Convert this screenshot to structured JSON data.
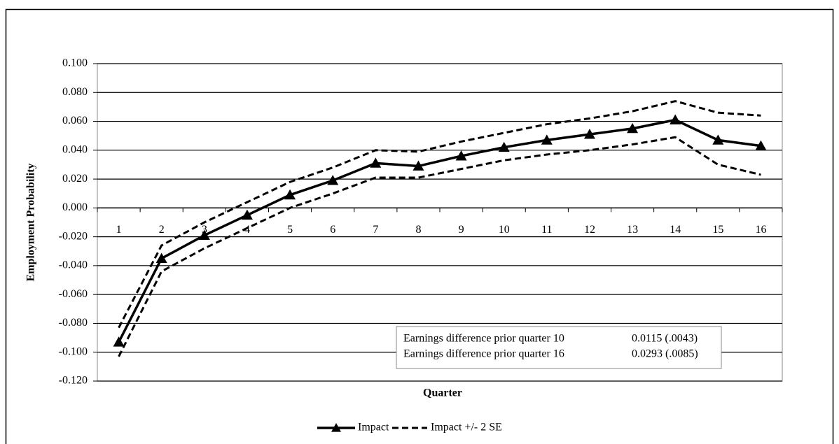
{
  "chart_data": {
    "type": "line",
    "x_label": "Quarter",
    "y_label": "Employment Probability",
    "categories": [
      "1",
      "2",
      "3",
      "4",
      "5",
      "6",
      "7",
      "8",
      "9",
      "10",
      "11",
      "12",
      "13",
      "14",
      "15",
      "16"
    ],
    "series": [
      {
        "name": "Impact",
        "color": "#000000",
        "values": [
          -0.093,
          -0.035,
          -0.019,
          -0.005,
          0.009,
          0.019,
          0.031,
          0.029,
          0.036,
          0.042,
          0.047,
          0.051,
          0.055,
          0.061,
          0.047,
          0.043
        ]
      }
    ],
    "band": {
      "name": "Impact +/- 2 SE",
      "color": "#000000",
      "upper": [
        -0.083,
        -0.026,
        -0.01,
        0.004,
        0.018,
        0.028,
        0.04,
        0.039,
        0.046,
        0.052,
        0.058,
        0.062,
        0.067,
        0.074,
        0.066,
        0.064
      ],
      "lower": [
        -0.103,
        -0.044,
        -0.028,
        -0.014,
        0.0,
        0.01,
        0.021,
        0.021,
        0.027,
        0.033,
        0.037,
        0.04,
        0.044,
        0.049,
        0.03,
        0.023
      ]
    },
    "ylim": [
      -0.12,
      0.1
    ],
    "yticks": [
      {
        "value": 0.1,
        "label": "0.100"
      },
      {
        "value": 0.08,
        "label": "0.080"
      },
      {
        "value": 0.06,
        "label": "0.060"
      },
      {
        "value": 0.04,
        "label": "0.040"
      },
      {
        "value": 0.02,
        "label": "0.020"
      },
      {
        "value": 0,
        "label": "0.000"
      },
      {
        "value": -0.02,
        "label": "-0.020"
      },
      {
        "value": -0.04,
        "label": "-0.040"
      },
      {
        "value": -0.06,
        "label": "-0.060"
      },
      {
        "value": -0.08,
        "label": "-0.080"
      },
      {
        "value": -0.1,
        "label": "-0.100"
      },
      {
        "value": -0.12,
        "label": "-0.120"
      }
    ],
    "grid": true,
    "annotation": {
      "rows": [
        [
          "Earnings difference prior quarter 10",
          "0.0115 (.0043)"
        ],
        [
          "Earnings difference prior quarter 16",
          "0.0293 (.0085)"
        ]
      ]
    }
  }
}
